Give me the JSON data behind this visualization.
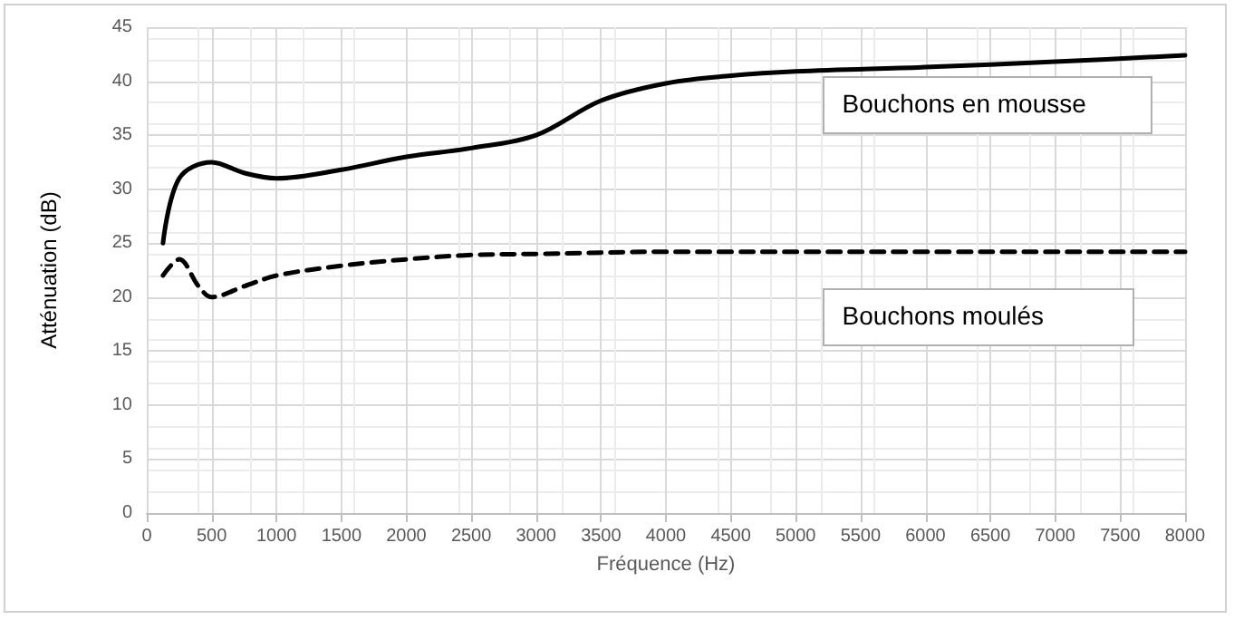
{
  "chart_data": {
    "type": "line",
    "xlabel": "Fréquence (Hz)",
    "ylabel": "Atténuation (dB)",
    "xlim": [
      0,
      8000
    ],
    "xticks": [
      0,
      500,
      1000,
      1500,
      2000,
      2500,
      3000,
      3500,
      4000,
      4500,
      5000,
      5500,
      6000,
      6500,
      7000,
      7500,
      8000
    ],
    "ylim": [
      0,
      45
    ],
    "yticks": [
      0,
      5,
      10,
      15,
      20,
      25,
      30,
      35,
      40,
      45
    ],
    "grid": true,
    "legend": false,
    "marker": "none",
    "series": [
      {
        "name": "Bouchons en mousse",
        "color": "#000000",
        "line_style": "solid",
        "x": [
          125,
          250,
          500,
          750,
          1000,
          1500,
          2000,
          2500,
          3000,
          3500,
          4000,
          4500,
          5000,
          6000,
          7000,
          8000
        ],
        "values": [
          25,
          31,
          32.5,
          31.5,
          31,
          31.8,
          33,
          33.8,
          35,
          38.2,
          39.8,
          40.5,
          40.9,
          41.3,
          41.8,
          42.4
        ]
      },
      {
        "name": "Bouchons moulés",
        "color": "#000000",
        "line_style": "dashed",
        "x": [
          125,
          250,
          400,
          500,
          750,
          1000,
          1500,
          2000,
          2500,
          3000,
          4000,
          8000
        ],
        "values": [
          22,
          23.5,
          21,
          20,
          21,
          22,
          22.9,
          23.5,
          23.9,
          24,
          24.2,
          24.2
        ]
      }
    ]
  }
}
